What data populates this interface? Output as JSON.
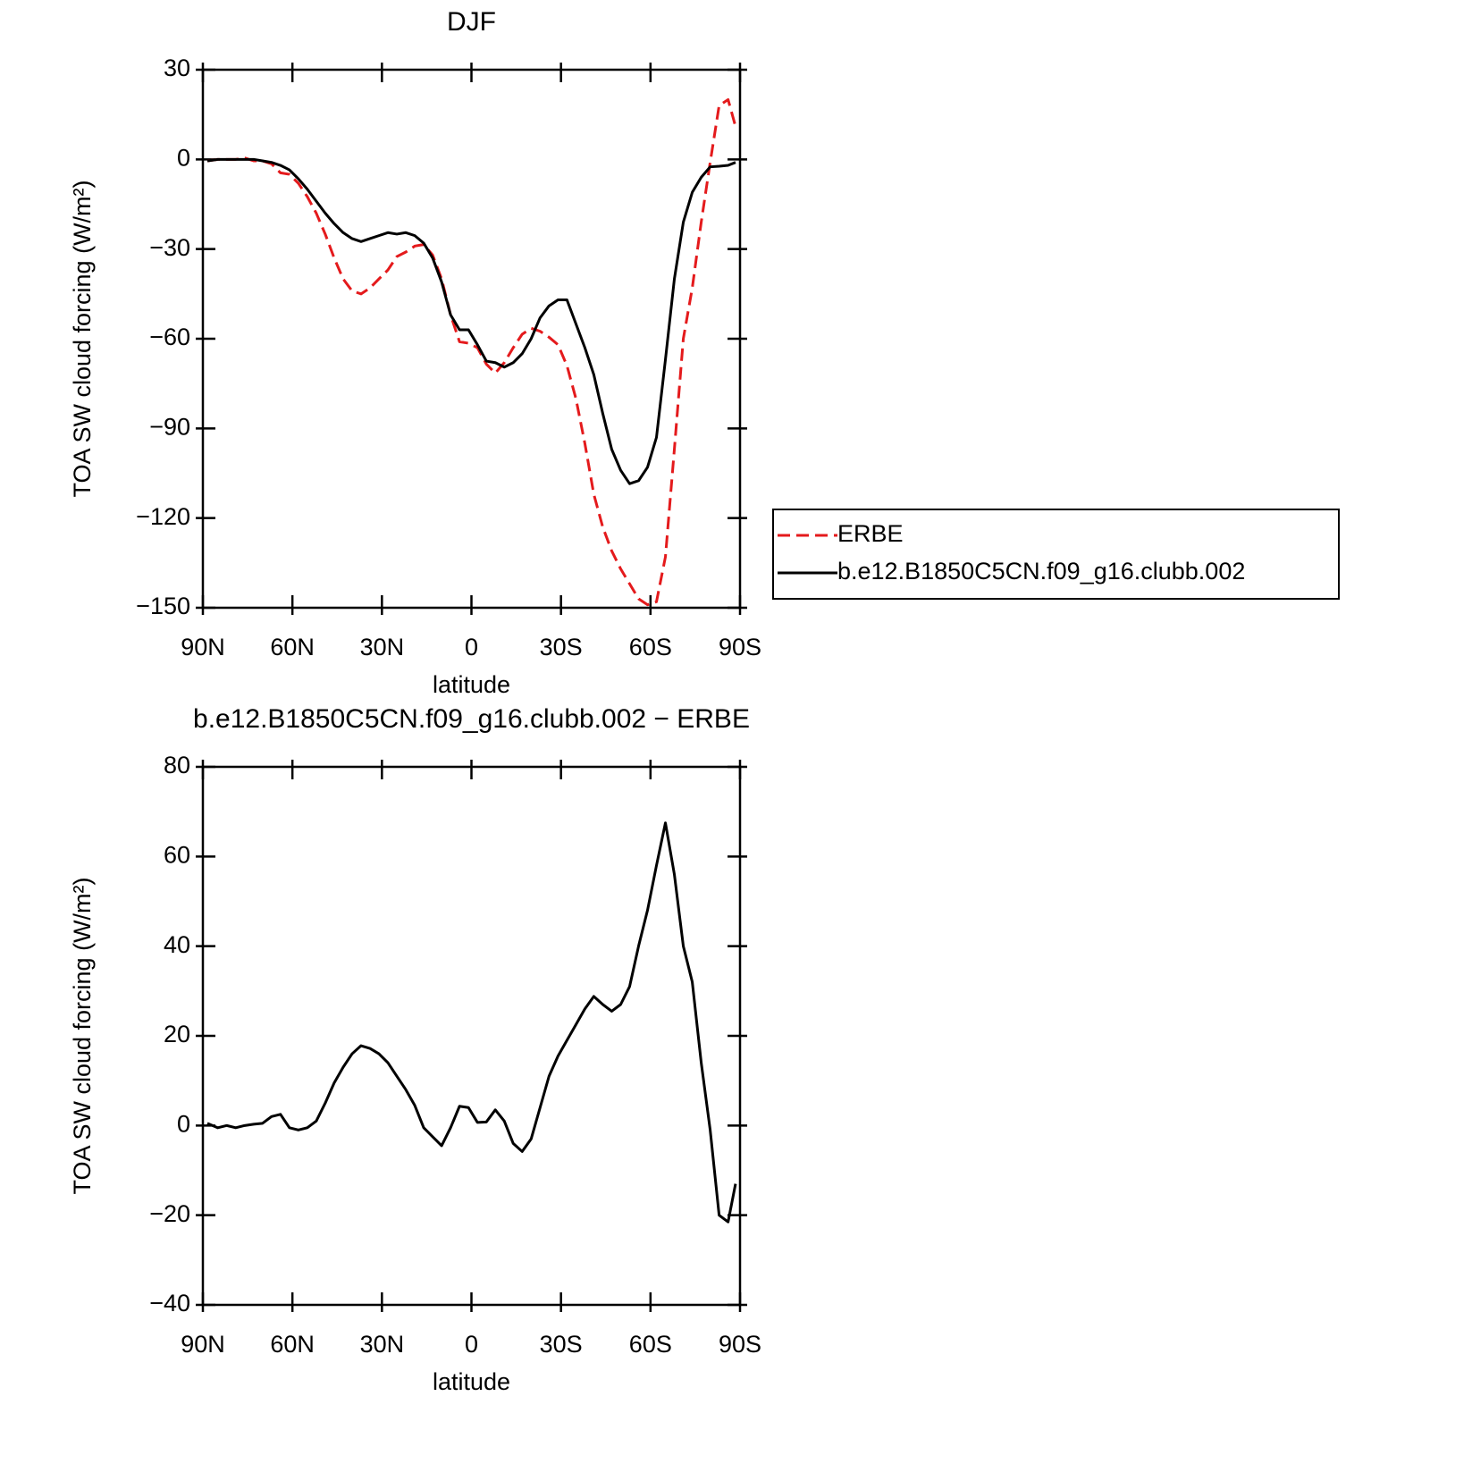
{
  "chart_data": [
    {
      "type": "line",
      "title": "DJF",
      "xlabel": "latitude",
      "ylabel": "TOA SW cloud forcing (W/m²)",
      "x": [
        88.5,
        85,
        82,
        79,
        76,
        73,
        70,
        67,
        64,
        61,
        58,
        55,
        52,
        49,
        46,
        43,
        40,
        37,
        34,
        31,
        28,
        25,
        22,
        19,
        16,
        13,
        10,
        7,
        4,
        1,
        -2,
        -5,
        -8,
        -11,
        -14,
        -17,
        -20,
        -23,
        -26,
        -29,
        -32,
        -35,
        -38,
        -41,
        -44,
        -47,
        -50,
        -53,
        -56,
        -59,
        -62,
        -65,
        -68,
        -71,
        -74,
        -77,
        -80,
        -83,
        -86,
        -88.5
      ],
      "series": [
        {
          "name": "ERBE",
          "color": "#e41a1c",
          "linestyle": "dashed",
          "values": [
            -0.5,
            0,
            0,
            0,
            0.5,
            -0.5,
            -0.5,
            -1.5,
            -4.5,
            -5,
            -8,
            -12.5,
            -18,
            -25,
            -33,
            -40,
            -44,
            -45,
            -43,
            -40,
            -37,
            -32.5,
            -31,
            -29,
            -28.5,
            -32,
            -40,
            -52,
            -61,
            -61.5,
            -63,
            -68.5,
            -71.5,
            -68,
            -63,
            -58.5,
            -56.5,
            -57.5,
            -59.5,
            -62,
            -69,
            -80,
            -95,
            -112,
            -123,
            -131,
            -137,
            -142,
            -147,
            -149,
            -148,
            -133,
            -97,
            -60,
            -43,
            -21,
            -1,
            18,
            20,
            11
          ]
        },
        {
          "name": "b.e12.B1850C5CN.f09_g16.clubb.002",
          "color": "#000000",
          "linestyle": "solid",
          "values": [
            -0.5,
            0,
            0,
            0,
            0,
            0,
            -0.5,
            -1,
            -2,
            -3.5,
            -6.5,
            -10,
            -14,
            -18,
            -21.5,
            -24.5,
            -26.5,
            -27.5,
            -26.5,
            -25.5,
            -24.5,
            -25,
            -24.5,
            -25.5,
            -28,
            -33,
            -41,
            -52,
            -57,
            -57,
            -62,
            -67.5,
            -68,
            -69.5,
            -68,
            -65,
            -60,
            -53,
            -49,
            -47,
            -47,
            -55,
            -63,
            -72,
            -85,
            -97,
            -104,
            -108.5,
            -107.5,
            -103,
            -93,
            -67,
            -40,
            -21,
            -11,
            -6,
            -2.5,
            -2.3,
            -2,
            -1
          ]
        }
      ],
      "xlim": [
        90,
        -90
      ],
      "xticks": [
        {
          "value": 90,
          "label": "90N"
        },
        {
          "value": 60,
          "label": "60N"
        },
        {
          "value": 30,
          "label": "30N"
        },
        0,
        {
          "value": -30,
          "label": "30S"
        },
        {
          "value": -60,
          "label": "60S"
        },
        {
          "value": -90,
          "label": "90S"
        }
      ],
      "ylim": [
        -150,
        30
      ],
      "yticks": [
        {
          "value": -150,
          "label": "−150"
        },
        {
          "value": -120,
          "label": "−120"
        },
        {
          "value": -90,
          "label": "−90"
        },
        {
          "value": -60,
          "label": "−60"
        },
        {
          "value": -30,
          "label": "−30"
        },
        0,
        30
      ],
      "legend": "right"
    },
    {
      "type": "line",
      "title": "b.e12.B1850C5CN.f09_g16.clubb.002 − ERBE",
      "xlabel": "latitude",
      "ylabel": "TOA SW cloud forcing (W/m²)",
      "x": [
        88.5,
        85,
        82,
        79,
        76,
        73,
        70,
        67,
        64,
        61,
        58,
        55,
        52,
        49,
        46,
        43,
        40,
        37,
        34,
        31,
        28,
        25,
        22,
        19,
        16,
        13,
        10,
        7,
        4,
        1,
        -2,
        -5,
        -8,
        -11,
        -14,
        -17,
        -20,
        -23,
        -26,
        -29,
        -32,
        -35,
        -38,
        -41,
        -44,
        -47,
        -50,
        -53,
        -56,
        -59,
        -62,
        -65,
        -68,
        -71,
        -74,
        -77,
        -80,
        -83,
        -86,
        -88.5
      ],
      "values": [
        0.5,
        -0.5,
        0,
        -0.5,
        0,
        0.3,
        0.5,
        2,
        2.5,
        -0.5,
        -1,
        -0.5,
        1,
        5,
        9.5,
        13,
        16,
        17.8,
        17.2,
        16,
        14,
        11,
        8,
        4.5,
        -0.5,
        -2.5,
        -4.5,
        -0.5,
        4.3,
        4,
        0.7,
        0.8,
        3.5,
        1,
        -4,
        -5.8,
        -3,
        4,
        11,
        15.5,
        19,
        22.5,
        26,
        28.8,
        27,
        25.5,
        27,
        31,
        40,
        48,
        58,
        67.5,
        56,
        40,
        32,
        14,
        -1,
        -20,
        -21.5,
        -13
      ],
      "color": "#000000",
      "xlim": [
        90,
        -90
      ],
      "xticks": [
        {
          "value": 90,
          "label": "90N"
        },
        {
          "value": 60,
          "label": "60N"
        },
        {
          "value": 30,
          "label": "30N"
        },
        0,
        {
          "value": -30,
          "label": "30S"
        },
        {
          "value": -60,
          "label": "60S"
        },
        {
          "value": -90,
          "label": "90S"
        }
      ],
      "ylim": [
        -40,
        80
      ],
      "yticks": [
        {
          "value": -40,
          "label": "−40"
        },
        {
          "value": -20,
          "label": "−20"
        },
        0,
        20,
        40,
        60,
        80
      ]
    }
  ]
}
